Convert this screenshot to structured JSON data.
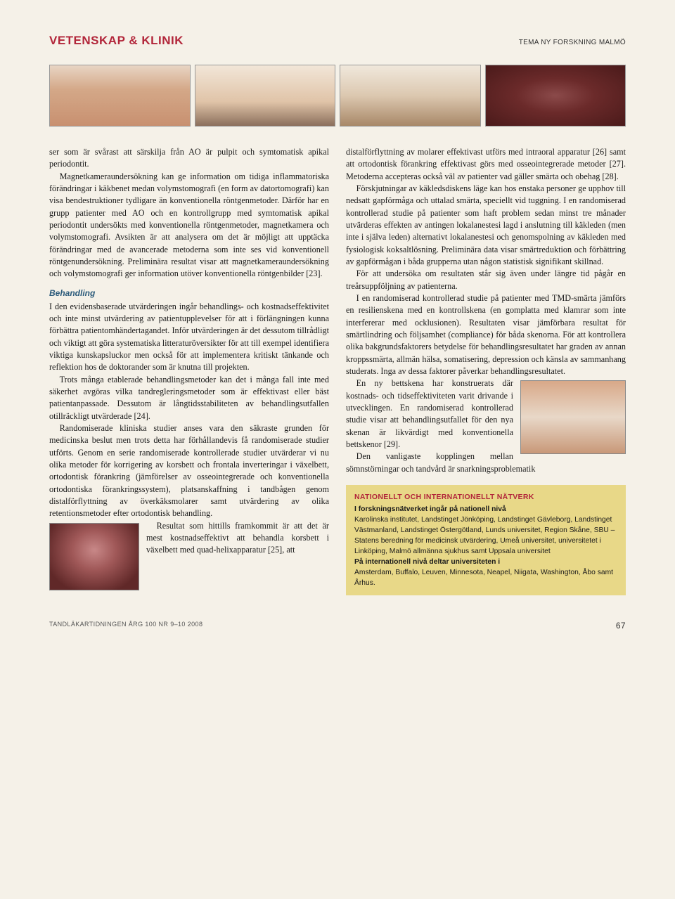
{
  "header": {
    "section_title": "VETENSKAP & KLINIK",
    "tema_label": "TEMA NY FORSKNING MALMÖ"
  },
  "left_column": {
    "p1": "ser som är svårast att särskilja från AO är pulpit och symtomatisk apikal periodontit.",
    "p2": "Magnetkameraundersökning kan ge information om tidiga inflammatoriska förändringar i käkbenet medan volymstomografi (en form av datortomografi) kan visa bendestruktioner tydligare än konventionella röntgenmetoder. Därför har en grupp patienter med AO och en kontrollgrupp med symtomatisk apikal periodontit undersökts med konventionella röntgenmetoder, magnetkamera och volymstomografi. Avsikten är att analysera om det är möjligt att upptäcka förändringar med de avancerade metoderna som inte ses vid konventionell röntgenundersökning. Preliminära resultat visar att magnetkameraundersökning och volymstomografi ger information utöver konventionella röntgenbilder [23].",
    "subhead": "Behandling",
    "p3": "I den evidensbaserade utvärderingen ingår behandlings- och kostnadseffektivitet och inte minst utvärdering av patientupplevelser för att i förlängningen kunna förbättra patientomhändertagandet. Inför utvärderingen är det dessutom tillrådligt och viktigt att göra systematiska litteraturöversikter för att till exempel identifiera viktiga kunskapsluckor men också för att implementera kritiskt tänkande och reflektion hos de doktorander som är knutna till projekten.",
    "p4": "Trots många etablerade behandlingsmetoder kan det i många fall inte med säkerhet avgöras vilka tandregleringsmetoder som är effektivast eller bäst patientanpassade. Dessutom är långtidsstabiliteten av behandlingsutfallen otillräckligt utvärderade [24].",
    "p5": "Randomiserade kliniska studier anses vara den säkraste grunden för medicinska beslut men trots detta har förhållandevis få randomiserade studier utförts. Genom en serie randomiserade kontrollerade studier utvärderar vi nu olika metoder för korrigering av korsbett och frontala inverteringar i växelbett, ortodontisk förankring (jämförelser av osseointegrerade och konventionella ortodontiska förankringssystem), platsanskaffning i tandbågen genom distalförflyttning av överkäksmolarer samt utvärdering av olika retentionsmetoder efter ortodontisk behandling.",
    "p6": "Resultat som hittills framkommit är att det är mest kostnadseffektivt att behandla korsbett i växelbett med quad-helixapparatur [25], att"
  },
  "right_column": {
    "p1": "distalförflyttning av molarer effektivast utförs med intraoral apparatur [26] samt att ortodontisk förankring effektivast görs med osseointegrerade metoder [27]. Metoderna accepteras också väl av patienter vad gäller smärta och obehag [28].",
    "p2": "Förskjutningar av käkledsdiskens läge kan hos enstaka personer ge upphov till nedsatt gapförmåga och uttalad smärta, speciellt vid tuggning. I en randomiserad kontrollerad studie på patienter som haft problem sedan minst tre månader utvärderas effekten av antingen lokalanestesi lagd i anslutning till käkleden (men inte i själva leden) alternativt lokalanestesi och genomspolning av käkleden med fysiologisk koksaltlösning. Preliminära data visar smärtreduktion och förbättring av gapförmågan i båda grupperna utan någon statistisk signifikant skillnad.",
    "p3": "För att undersöka om resultaten står sig även under längre tid pågår en treårsuppföljning av patienterna.",
    "p4": "I en randomiserad kontrollerad studie på patienter med TMD-smärta jämförs en resilienskena med en kontrollskena (en gomplatta med klamrar som inte interfererar med ocklusionen). Resultaten visar jämförbara resultat för smärtlindring och följsamhet (compliance) för båda skenorna. För att kontrollera olika bakgrundsfaktorers betydelse för behandlingsresultatet har graden av annan kroppssmärta, allmän hälsa, somatisering, depression och känsla av sammanhang studerats. Inga av dessa faktorer påverkar behandlingsresultatet.",
    "p5": "En ny bettskena har konstruerats där kostnads- och tidseffektiviteten varit drivande i utvecklingen. En randomiserad kontrollerad studie visar att behandlingsutfallet för den nya skenan är likvärdigt med konventionella bettskenor [29].",
    "p6": "Den vanligaste kopplingen mellan sömnstörningar och tandvård är snarkningsproblematik"
  },
  "info_box": {
    "title": "NATIONELLT OCH INTERNATIONELLT NÄTVERK",
    "line1_bold": "I forskningsnätverket ingår på nationell nivå",
    "body1": "Karolinska institutet, Landstinget Jönköping, Landstinget Gävleborg, Landstinget Västmanland, Landstinget Östergötland, Lunds universitet, Region Skåne, SBU – Statens beredning för medicinsk utvärdering, Umeå universitet, universitetet i Linköping, Malmö allmänna sjukhus samt Uppsala universitet",
    "line2_bold": "På internationell nivå deltar universiteten i",
    "body2": "Amsterdam, Buffalo, Leuven, Minnesota, Neapel, Niigata, Washington, Åbo samt Århus."
  },
  "footer": {
    "citation": "TANDLÄKARTIDNINGEN ÅRG 100 NR 9–10 2008",
    "page": "67"
  },
  "colors": {
    "background": "#f5f1e8",
    "accent_red": "#b2263a",
    "subhead_blue": "#2a5a7a",
    "infobox_bg": "#e8d888"
  }
}
